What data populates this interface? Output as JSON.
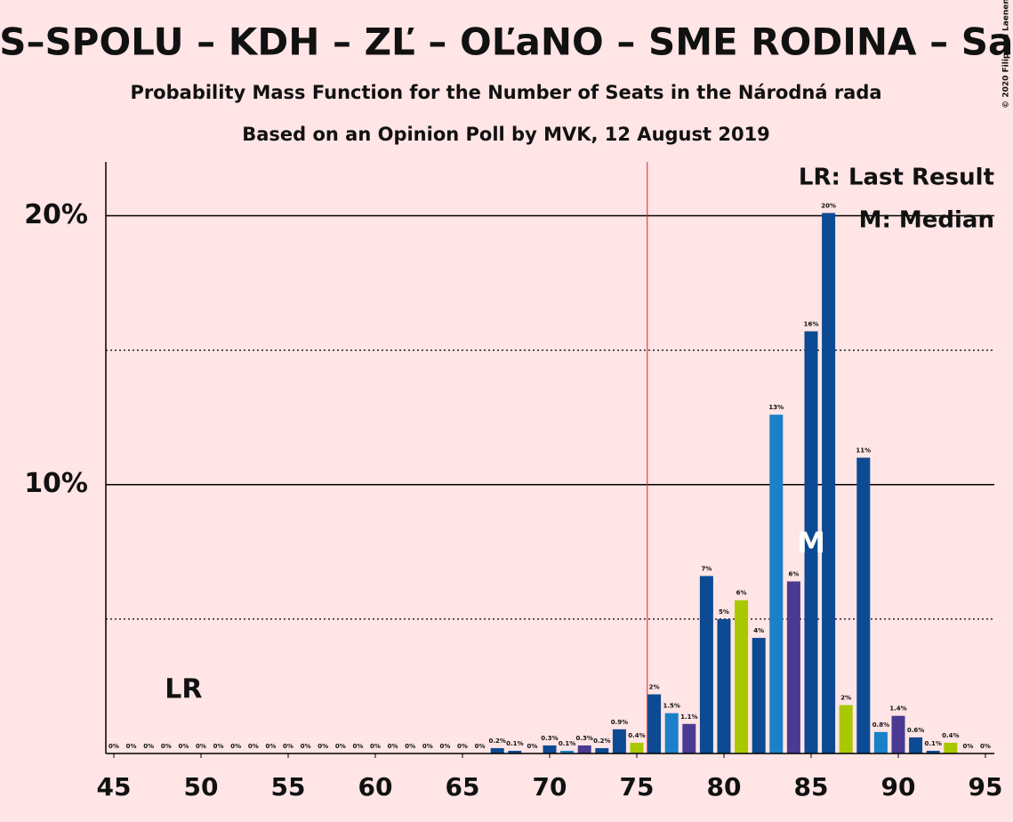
{
  "chart_data": {
    "type": "bar",
    "title": "PS–SPOLU – KDH – ZĽ – OĽaNO – SME RODINA – SaS",
    "subtitle": "Probability Mass Function for the Number of Seats in the Národná rada",
    "caption": "Based on an Opinion Poll by MVK, 12 August 2019",
    "copyright": "© 2020 Filip van Laenen",
    "x": [
      45,
      46,
      47,
      48,
      49,
      50,
      51,
      52,
      53,
      54,
      55,
      56,
      57,
      58,
      59,
      60,
      61,
      62,
      63,
      64,
      65,
      66,
      67,
      68,
      69,
      70,
      71,
      72,
      73,
      74,
      75,
      76,
      77,
      78,
      79,
      80,
      81,
      82,
      83,
      84,
      85,
      86,
      87,
      88,
      89,
      90,
      91,
      92,
      93,
      94,
      95
    ],
    "values": [
      0,
      0,
      0,
      0,
      0,
      0,
      0,
      0,
      0,
      0,
      0,
      0,
      0,
      0,
      0,
      0,
      0,
      0,
      0,
      0,
      0,
      0,
      0.2,
      0.1,
      0,
      0.3,
      0.1,
      0.3,
      0.2,
      0.9,
      0.4,
      2.2,
      1.5,
      1.1,
      6.6,
      5.0,
      5.7,
      4.3,
      12.6,
      6.4,
      15.7,
      20.1,
      1.8,
      11.0,
      0.8,
      1.4,
      0.6,
      0.1,
      0.4,
      0,
      0
    ],
    "value_labels": [
      "0%",
      "0%",
      "0%",
      "0%",
      "0%",
      "0%",
      "0%",
      "0%",
      "0%",
      "0%",
      "0%",
      "0%",
      "0%",
      "0%",
      "0%",
      "0%",
      "0%",
      "0%",
      "0%",
      "0%",
      "0%",
      "0%",
      "0.2%",
      "0.1%",
      "0%",
      "0.3%",
      "0.1%",
      "0.3%",
      "0.2%",
      "0.9%",
      "0.4%",
      "2%",
      "1.5%",
      "1.1%",
      "7%",
      "5%",
      "6%",
      "4%",
      "13%",
      "6%",
      "16%",
      "20%",
      "2%",
      "11%",
      "0.8%",
      "1.4%",
      "0.6%",
      "0.1%",
      "0.4%",
      "0%",
      "0%"
    ],
    "colors": [
      "#a9c800",
      "#0c4a93",
      "#1a80c8",
      "#4a3a91",
      "#0c4a93",
      "#0c4a93",
      "#a9c800",
      "#0c4a93",
      "#1a80c8",
      "#4a3a91",
      "#0c4a93",
      "#0c4a93",
      "#a9c800",
      "#0c4a93",
      "#1a80c8",
      "#4a3a91",
      "#0c4a93",
      "#0c4a93",
      "#a9c800",
      "#0c4a93",
      "#1a80c8",
      "#4a3a91",
      "#0c4a93",
      "#0c4a93",
      "#a9c800",
      "#0c4a93",
      "#1a80c8",
      "#4a3a91",
      "#0c4a93",
      "#0c4a93",
      "#a9c800",
      "#0c4a93",
      "#1a80c8",
      "#4a3a91",
      "#0c4a93",
      "#0c4a93",
      "#a9c800",
      "#0c4a93",
      "#1a80c8",
      "#4a3a91",
      "#0c4a93",
      "#0c4a93",
      "#a9c800",
      "#0c4a93",
      "#1a80c8",
      "#4a3a91",
      "#0c4a93",
      "#0c4a93",
      "#a9c800",
      "#0c4a93",
      "#1a80c8"
    ],
    "xlim": [
      44.5,
      95.5
    ],
    "xticks": [
      45,
      50,
      55,
      60,
      65,
      70,
      75,
      80,
      85,
      90,
      95
    ],
    "ylim": [
      0,
      22
    ],
    "yticks": [
      {
        "value": 10,
        "label": "10%"
      },
      {
        "value": 20,
        "label": "20%"
      }
    ],
    "minor_yticks": [
      5,
      15
    ],
    "majority_line": 75.6,
    "annotations": [
      {
        "label": "LR",
        "x": 49
      },
      {
        "label": "M",
        "x": 85
      }
    ],
    "legend": [
      "LR: Last Result",
      "M: Median"
    ]
  }
}
